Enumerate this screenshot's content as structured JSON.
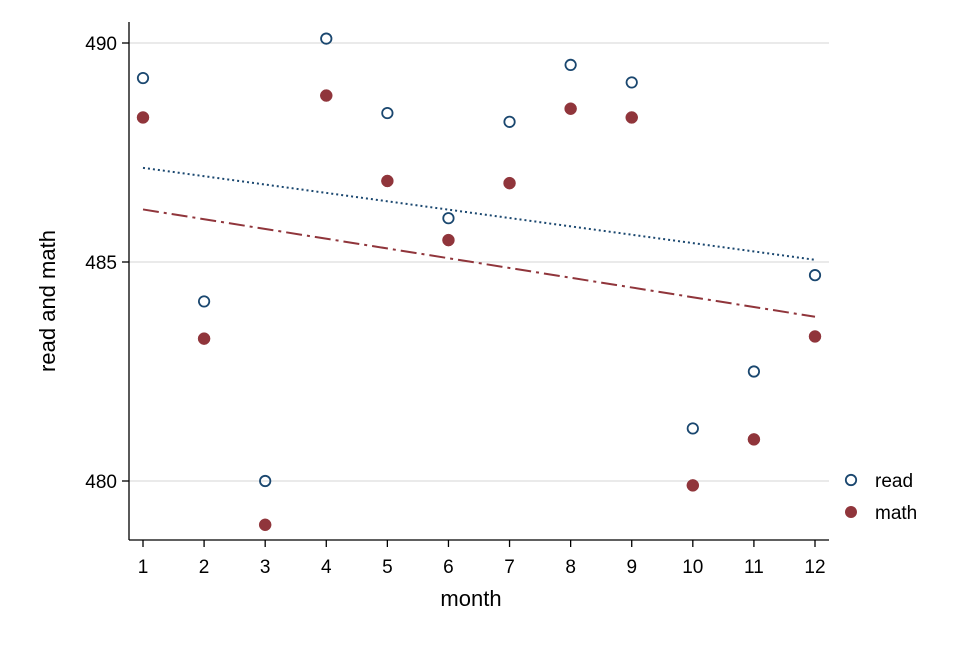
{
  "chart_data": {
    "type": "scatter",
    "xlabel": "month",
    "ylabel": "read and math",
    "xlim": [
      1,
      12
    ],
    "ylim": [
      479,
      490.5
    ],
    "x_ticks": [
      "1",
      "2",
      "3",
      "4",
      "5",
      "6",
      "7",
      "8",
      "9",
      "10",
      "11",
      "12"
    ],
    "y_ticks": [
      "480",
      "485",
      "490"
    ],
    "grid": "horizontal",
    "legend_position": "right",
    "x": [
      1,
      2,
      3,
      4,
      5,
      6,
      7,
      8,
      9,
      10,
      11,
      12
    ],
    "series": [
      {
        "name": "read",
        "marker": "hollow-circle",
        "color": "#1a476f",
        "values": [
          489.2,
          484.1,
          480.0,
          490.1,
          488.4,
          486.0,
          488.2,
          489.5,
          489.1,
          481.2,
          482.5,
          484.7
        ],
        "fit_line": {
          "style": "dotted",
          "start": [
            1,
            487.15
          ],
          "end": [
            12,
            485.05
          ]
        }
      },
      {
        "name": "math",
        "marker": "filled-circle",
        "color": "#90353b",
        "values": [
          488.3,
          483.25,
          479.0,
          488.8,
          486.85,
          485.5,
          486.8,
          488.5,
          488.3,
          479.9,
          480.95,
          483.3
        ],
        "fit_line": {
          "style": "dash-dot",
          "start": [
            1,
            486.2
          ],
          "end": [
            12,
            483.75
          ]
        }
      }
    ]
  }
}
